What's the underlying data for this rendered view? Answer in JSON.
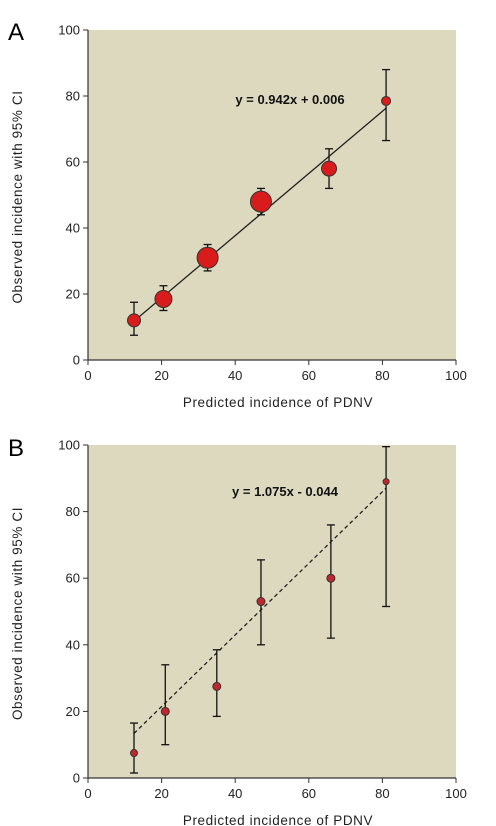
{
  "chart_data": [
    {
      "panel": "A",
      "type": "scatter",
      "xlabel": "Predicted incidence of PDNV",
      "ylabel": "Observed incidence with 95% CI",
      "xlim": [
        0,
        100
      ],
      "ylim": [
        0,
        100
      ],
      "xticks": [
        0,
        20,
        40,
        60,
        80,
        100
      ],
      "yticks": [
        0,
        20,
        40,
        60,
        80,
        100
      ],
      "grid": false,
      "fit_line": {
        "slope": 0.942,
        "intercept": 0.006,
        "style": "solid",
        "label": "y = 0.942x + 0.006"
      },
      "background": "#ddd9bf",
      "marker_color": "#d81c1c",
      "points": [
        {
          "x": 12.5,
          "y": 12,
          "ci_low": 7.5,
          "ci_high": 17.5,
          "size": 4
        },
        {
          "x": 20.5,
          "y": 18.5,
          "ci_low": 15,
          "ci_high": 22.5,
          "size": 6
        },
        {
          "x": 32.5,
          "y": 31,
          "ci_low": 27,
          "ci_high": 35,
          "size": 8
        },
        {
          "x": 47,
          "y": 48,
          "ci_low": 44,
          "ci_high": 52,
          "size": 8
        },
        {
          "x": 65.5,
          "y": 58,
          "ci_low": 52,
          "ci_high": 64,
          "size": 5
        },
        {
          "x": 81,
          "y": 78.5,
          "ci_low": 66.5,
          "ci_high": 88,
          "size": 2
        }
      ]
    },
    {
      "panel": "B",
      "type": "scatter",
      "xlabel": "Predicted incidence of PDNV",
      "ylabel": "Observed incidence with 95% CI",
      "xlim": [
        0,
        100
      ],
      "ylim": [
        0,
        100
      ],
      "xticks": [
        0,
        20,
        40,
        60,
        80,
        100
      ],
      "yticks": [
        0,
        20,
        40,
        60,
        80,
        100
      ],
      "grid": false,
      "fit_line": {
        "slope": 1.075,
        "intercept": -0.044,
        "style": "dashed",
        "label": "y = 1.075x - 0.044"
      },
      "background": "#ddd9bf",
      "marker_color": "#c0272d",
      "points": [
        {
          "x": 12.5,
          "y": 7.5,
          "ci_low": 1.5,
          "ci_high": 16.5,
          "size": 1
        },
        {
          "x": 21,
          "y": 20,
          "ci_low": 10,
          "ci_high": 34,
          "size": 1.5
        },
        {
          "x": 35,
          "y": 27.5,
          "ci_low": 18.5,
          "ci_high": 38.5,
          "size": 1.5
        },
        {
          "x": 47,
          "y": 53,
          "ci_low": 40,
          "ci_high": 65.5,
          "size": 1.5
        },
        {
          "x": 66,
          "y": 60,
          "ci_low": 42,
          "ci_high": 76,
          "size": 1.5
        },
        {
          "x": 81,
          "y": 89,
          "ci_low": 51.5,
          "ci_high": 99.5,
          "size": 0.5
        }
      ]
    }
  ]
}
